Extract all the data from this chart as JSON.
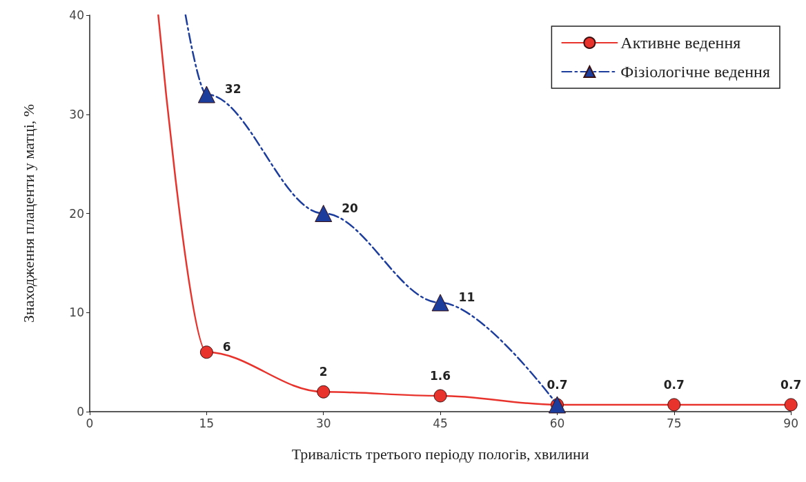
{
  "chart_data": {
    "type": "line",
    "xlabel": "Тривалість третього періоду пологів, хвилини",
    "ylabel": "Знаходження плаценти у матці, %",
    "xlim": [
      0,
      90
    ],
    "xticks": [
      0,
      15,
      30,
      45,
      60,
      75,
      90
    ],
    "ylim": [
      0,
      40
    ],
    "yticks": [
      0,
      10,
      20,
      30,
      40
    ],
    "grid": false,
    "legend": "top right",
    "series": [
      {
        "name": "Активне ведення",
        "color": "#e8322c",
        "marker": "circle",
        "line_style": "solid",
        "x": [
          8.8,
          15,
          30,
          45,
          60,
          75,
          90
        ],
        "values": [
          40,
          6,
          2,
          1.6,
          0.7,
          0.7,
          0.7
        ],
        "value_labels": [
          null,
          "6",
          "2",
          "1.6",
          "0.7",
          "0.7",
          "0.7"
        ]
      },
      {
        "name": "Фізіологічне ведення",
        "color": "#1c3d9c",
        "marker": "triangle",
        "line_style": "dashed",
        "x": [
          12.3,
          15,
          30,
          45,
          60
        ],
        "values": [
          40,
          32,
          20,
          11,
          0.7
        ],
        "value_labels": [
          null,
          "32",
          "20",
          "11",
          null
        ]
      }
    ]
  }
}
